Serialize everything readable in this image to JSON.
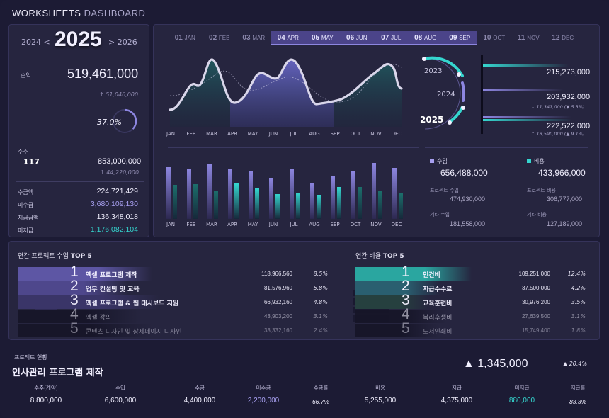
{
  "app": {
    "title_main": "WORKSHEETS",
    "title_sub": "DASHBOARD"
  },
  "years": {
    "prev": "2024  <",
    "current": "2025",
    "next": ">  2026"
  },
  "left": {
    "profit_label": "손익",
    "profit_value": "519,461,000",
    "profit_prev": "↑ 51,046,000",
    "profit_rate": "37.0%",
    "profit_rate_fraction": 0.37,
    "orders_label": "수주",
    "orders_count": "117",
    "orders_value": "853,000,000",
    "orders_prev": "↑ 44,220,000",
    "rows": [
      {
        "label": "수금액",
        "value": "224,721,429",
        "color": "#f2f0ff"
      },
      {
        "label": "미수금",
        "value": "3,680,109,130",
        "color": "#a79ff0"
      },
      {
        "label": "지급금액",
        "value": "136,348,018",
        "color": "#f2f0ff"
      },
      {
        "label": "미지급",
        "value": "1,176,082,104",
        "color": "#35d6cf"
      }
    ]
  },
  "months": [
    {
      "num": "01",
      "name": "JAN",
      "active": false
    },
    {
      "num": "02",
      "name": "FEB",
      "active": false
    },
    {
      "num": "03",
      "name": "MAR",
      "active": false
    },
    {
      "num": "04",
      "name": "APR",
      "active": true
    },
    {
      "num": "05",
      "name": "MAY",
      "active": true
    },
    {
      "num": "06",
      "name": "JUN",
      "active": true
    },
    {
      "num": "07",
      "name": "JUL",
      "active": true
    },
    {
      "num": "08",
      "name": "AUG",
      "active": true
    },
    {
      "num": "09",
      "name": "SEP",
      "active": true
    },
    {
      "num": "10",
      "name": "OCT",
      "active": false
    },
    {
      "num": "11",
      "name": "NOV",
      "active": false
    },
    {
      "num": "12",
      "name": "DEC",
      "active": false
    }
  ],
  "axis_months": [
    "JAN",
    "FEB",
    "MAR",
    "APR",
    "MAY",
    "JUN",
    "JUL",
    "AUG",
    "SEP",
    "OCT",
    "NOV",
    "DEC"
  ],
  "year_compare": {
    "labels": [
      "2023",
      "2024",
      "2025"
    ],
    "values": [
      "215,273,000",
      "203,932,000",
      "222,522,000"
    ],
    "subs": [
      "",
      "↓ 11,341,000  (▼ 5.3%)",
      "↑ 18,590,000  (▲ 9.1%)"
    ],
    "bar_fraction": [
      0.97,
      0.91,
      1.0
    ]
  },
  "summary": {
    "income_label": "수입",
    "income_value": "656,488,000",
    "cost_label": "비용",
    "cost_value": "433,966,000",
    "proj_income_label": "프로젝트 수입",
    "proj_income_value": "474,930,000",
    "proj_cost_label": "프로젝트 비용",
    "proj_cost_value": "306,777,000",
    "etc_income_label": "기타 수입",
    "etc_income_value": "181,558,000",
    "etc_cost_label": "기타 비용",
    "etc_cost_value": "127,189,000"
  },
  "top_income": {
    "title_pre": "연간 프로젝트 수입 ",
    "title_bold": "TOP 5",
    "items": [
      {
        "rank": "1",
        "name": "엑셀 프로그램 제작",
        "value": "118,966,560",
        "pct": "8.5%"
      },
      {
        "rank": "2",
        "name": "업무 컨설팅 및 교육",
        "value": "81,576,960",
        "pct": "5.8%"
      },
      {
        "rank": "3",
        "name": "엑셀 프로그램 & 웹 대시보드 지원",
        "value": "66,932,160",
        "pct": "4.8%"
      },
      {
        "rank": "4",
        "name": "엑셀 강의",
        "value": "43,903,200",
        "pct": "3.1%"
      },
      {
        "rank": "5",
        "name": "콘텐츠 디자인 및 상세페이지 디자인",
        "value": "33,332,160",
        "pct": "2.4%"
      }
    ]
  },
  "top_cost": {
    "title_pre": "연간 비용 ",
    "title_bold": "TOP 5",
    "items": [
      {
        "rank": "1",
        "name": "인건비",
        "value": "109,251,000",
        "pct": "12.4%"
      },
      {
        "rank": "2",
        "name": "지급수수료",
        "value": "37,500,000",
        "pct": "4.2%"
      },
      {
        "rank": "3",
        "name": "교육훈련비",
        "value": "30,976,200",
        "pct": "3.5%"
      },
      {
        "rank": "4",
        "name": "복리후생비",
        "value": "27,639,500",
        "pct": "3.1%"
      },
      {
        "rank": "5",
        "name": "도서인쇄비",
        "value": "15,749,400",
        "pct": "1.8%"
      }
    ]
  },
  "project": {
    "section_label": "프로젝트 현황",
    "name": "인사관리 프로그램 제작",
    "big_value": "▲  1,345,000",
    "big_pct": "▲ 20.4%",
    "columns": [
      {
        "label": "수주(계약)",
        "value": "8,800,000",
        "color": "#f2f0ff"
      },
      {
        "label": "수입",
        "value": "6,600,000",
        "color": "#f2f0ff"
      },
      {
        "label": "수금",
        "value": "4,400,000",
        "color": "#f2f0ff"
      },
      {
        "label": "미수금",
        "value": "2,200,000",
        "color": "#a79ff0"
      },
      {
        "label": "수금률",
        "value": "66.7%",
        "color": "#f2f0ff"
      },
      {
        "label": "비용",
        "value": "5,255,000",
        "color": "#f2f0ff"
      },
      {
        "label": "지급",
        "value": "4,375,000",
        "color": "#f2f0ff"
      },
      {
        "label": "미지급",
        "value": "880,000",
        "color": "#35d6cf"
      },
      {
        "label": "지급률",
        "value": "83.3%",
        "color": "#f2f0ff"
      }
    ]
  },
  "colors": {
    "accent_purple": "#8d86e0",
    "accent_teal": "#35d6cf",
    "bg": "#1c1b34"
  }
}
